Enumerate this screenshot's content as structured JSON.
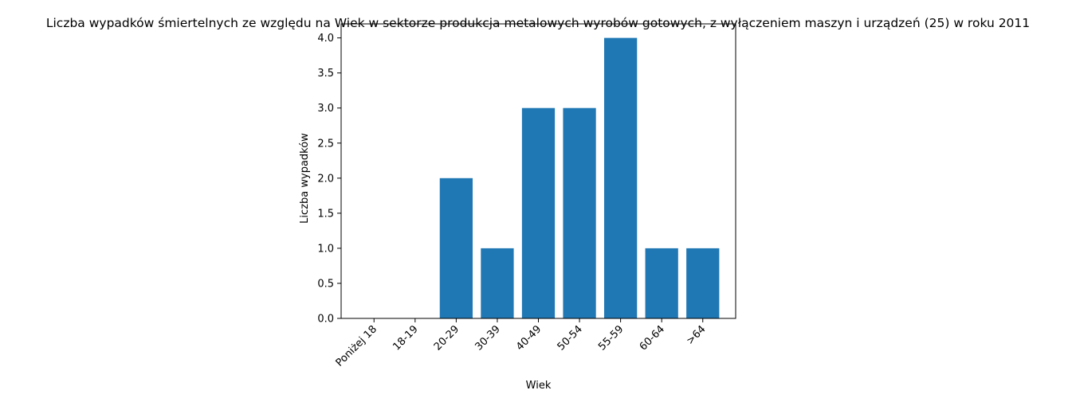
{
  "chart_data": {
    "type": "bar",
    "title": "Liczba wypadków śmiertelnych ze względu na Wiek w sektorze produkcja metalowych wyrobów gotowych, z wyłączeniem maszyn i urządzeń (25) w roku 2011",
    "xlabel": "Wiek",
    "ylabel": "Liczba wypadków",
    "categories": [
      "Poniżej 18",
      "18-19",
      "20-29",
      "30-39",
      "40-49",
      "50-54",
      "55-59",
      "60-64",
      ">64"
    ],
    "values": [
      0,
      0,
      2,
      1,
      3,
      3,
      4,
      1,
      1
    ],
    "ylim": [
      0,
      4.2
    ],
    "yticks": [
      0.0,
      0.5,
      1.0,
      1.5,
      2.0,
      2.5,
      3.0,
      3.5,
      4.0
    ],
    "ytick_labels": [
      "0.0",
      "0.5",
      "1.0",
      "1.5",
      "2.0",
      "2.5",
      "3.0",
      "3.5",
      "4.0"
    ],
    "bar_color": "#1f77b4",
    "grid": false,
    "legend": "none"
  }
}
